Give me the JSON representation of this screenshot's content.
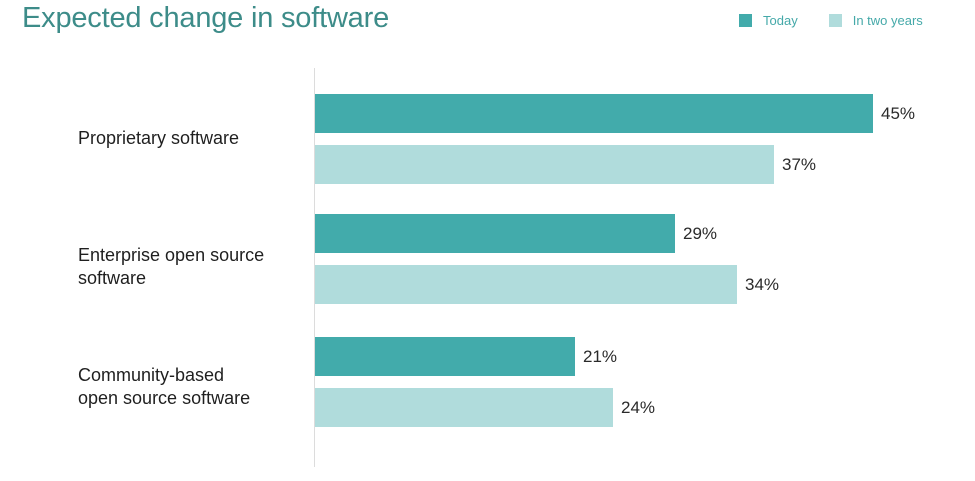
{
  "chart_data": {
    "type": "bar",
    "orientation": "horizontal",
    "title": "Expected change in software",
    "categories": [
      "Proprietary software",
      "Enterprise open source software",
      "Community-based open source software"
    ],
    "category_lines": [
      [
        "Proprietary software"
      ],
      [
        "Enterprise open source",
        "software"
      ],
      [
        "Community-based",
        "open source software"
      ]
    ],
    "series": [
      {
        "name": "Today",
        "values": [
          45,
          29,
          21
        ],
        "labels": [
          "45%",
          "29%",
          "21%"
        ],
        "color": "#42abab"
      },
      {
        "name": "In two years",
        "values": [
          37,
          34,
          24
        ],
        "labels": [
          "37%",
          "34%",
          "24%"
        ],
        "color": "#b0dcdc"
      }
    ],
    "xlim": [
      0,
      50
    ],
    "legend_position": "top-right",
    "grid": false
  }
}
